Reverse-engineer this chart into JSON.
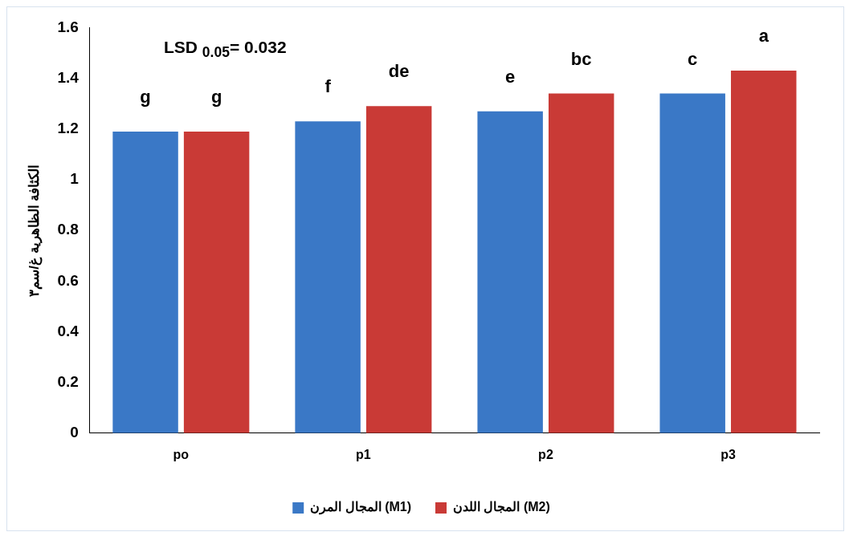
{
  "chart_data": {
    "type": "bar",
    "ylabel": "الكثافة الظاهرية غ/سم٣",
    "categories": [
      "po",
      "p1",
      "p2",
      "p3"
    ],
    "series": [
      {
        "name": "المجال المرن (M1)",
        "color": "#3a78c6",
        "values": [
          1.19,
          1.23,
          1.27,
          1.34
        ]
      },
      {
        "name": "المجال اللدن (M2)",
        "color": "#c93a36",
        "values": [
          1.19,
          1.29,
          1.34,
          1.43
        ]
      }
    ],
    "ylim": [
      0,
      1.6
    ],
    "yticks": [
      0,
      0.2,
      0.4,
      0.6,
      0.8,
      {
        "value": 1,
        "label": "1"
      },
      1.2,
      1.4,
      1.6
    ],
    "grid": false,
    "legend": "bottom",
    "annotations": [
      "LSD $_{0.05}$= 0.032",
      {
        "text": "g",
        "x": "po",
        "y": 1.19
      },
      {
        "text": "g",
        "x": "po",
        "y": 1.19
      },
      {
        "text": "f",
        "x": "p1",
        "y": 1.23
      },
      {
        "text": "de",
        "x": "p1",
        "y": 1.29
      },
      {
        "text": "e",
        "x": "p2",
        "y": 1.27
      },
      {
        "text": "bc",
        "x": "p2",
        "y": 1.34
      },
      {
        "text": "c",
        "x": "p3",
        "y": 1.34
      },
      {
        "text": "a",
        "x": "p3",
        "y": 1.43
      }
    ]
  }
}
